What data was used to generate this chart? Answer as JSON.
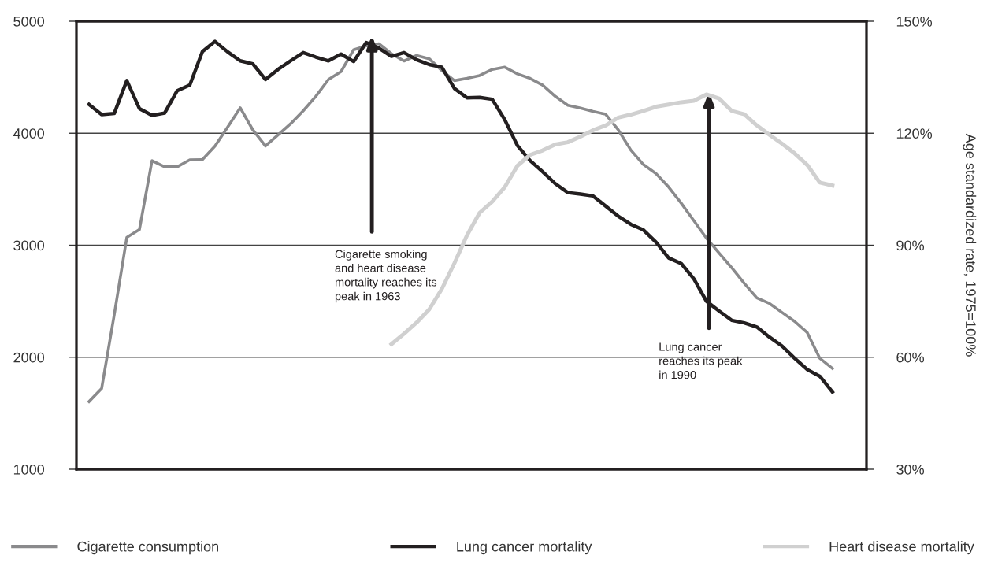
{
  "chart_data": {
    "type": "line",
    "categories": [
      null,
      null,
      null,
      null,
      null,
      null,
      null,
      null,
      null,
      null,
      null,
      null,
      null,
      null,
      null,
      null,
      null,
      null,
      null,
      null,
      null,
      null,
      null,
      null,
      null,
      null,
      null,
      null,
      null,
      null,
      null,
      null,
      null,
      null,
      null,
      null,
      null,
      null,
      null,
      null,
      null,
      null,
      null,
      null,
      null,
      null,
      null,
      null,
      null,
      null,
      null,
      null,
      null,
      null,
      null,
      null,
      null,
      null,
      null,
      null
    ],
    "series": [
      {
        "name": "Cigarette consumption",
        "color": "#8a8a8c",
        "values": [
          1604,
          1720,
          2378,
          3070,
          3140,
          3755,
          3700,
          3700,
          3763,
          3765,
          3885,
          4055,
          4227,
          4030,
          3886,
          3985,
          4085,
          4200,
          4330,
          4480,
          4550,
          4745,
          4780,
          4800,
          4710,
          4645,
          4695,
          4665,
          4560,
          4470,
          4490,
          4515,
          4570,
          4590,
          4530,
          4490,
          4430,
          4330,
          4250,
          4225,
          4195,
          4170,
          4030,
          3850,
          3720,
          3640,
          3520,
          3375,
          3220,
          3063,
          2930,
          2800,
          2660,
          2530,
          2480,
          2400,
          2320,
          2220,
          1990,
          1900
        ]
      },
      {
        "name": "Lung cancer mortality",
        "color": "#231f20",
        "axis": "y2",
        "values": [
          127.7,
          125.0,
          125.3,
          134.1,
          126.6,
          124.8,
          125.4,
          131.4,
          132.9,
          141.9,
          144.6,
          141.8,
          139.4,
          138.6,
          134.4,
          137.1,
          139.4,
          141.6,
          140.4,
          139.4,
          141.2,
          139.2,
          144.3,
          142.8,
          140.6,
          141.6,
          139.7,
          138.4,
          137.7,
          132.0,
          129.5,
          129.6,
          129.1,
          123.6,
          116.7,
          112.7,
          109.7,
          106.5,
          104.1,
          103.7,
          103.2,
          100.5,
          97.8,
          95.6,
          94.1,
          90.8,
          86.6,
          85.1,
          81.0,
          75.0,
          72.4,
          69.9,
          69.2,
          68.1,
          65.4,
          63.0,
          59.7,
          56.7,
          54.9,
          50.7
        ]
      },
      {
        "name": "Heart disease mortality",
        "color": "#d0d0d0",
        "axis": "y2",
        "values": [
          null,
          null,
          null,
          null,
          null,
          null,
          null,
          null,
          null,
          null,
          null,
          null,
          null,
          null,
          null,
          null,
          null,
          null,
          null,
          null,
          null,
          null,
          null,
          null,
          63.5,
          66.3,
          69.3,
          72.8,
          78.3,
          85.2,
          92.7,
          98.7,
          101.7,
          105.6,
          111.3,
          114.2,
          115.4,
          117.0,
          117.6,
          119.1,
          120.8,
          122.1,
          124.2,
          125.0,
          126.0,
          127.1,
          127.7,
          128.3,
          128.7,
          130.4,
          129.3,
          126.0,
          125.1,
          122.1,
          119.6,
          117.2,
          114.6,
          111.5,
          106.8,
          106.0
        ]
      }
    ],
    "ylim": [
      1000,
      5000
    ],
    "yticks": [
      1000,
      2000,
      3000,
      4000,
      5000
    ],
    "y2lim": [
      30,
      150
    ],
    "y2ticks": [
      {
        "value": 30,
        "label": "30%"
      },
      {
        "value": 60,
        "label": "60%"
      },
      {
        "value": 90,
        "label": "90%"
      },
      {
        "value": 120,
        "label": "120%"
      },
      {
        "value": 150,
        "label": "150%"
      }
    ],
    "y2label": "Age standardized rate, 1975=100%",
    "annotations": [
      "Cigarette smoking\nand heart disease\nmortality reaches its\npeak in 1963",
      "Lung cancer\nreaches its peak\nin 1990"
    ],
    "grid": "y",
    "legend": "bottom",
    "line_style": "solid",
    "marker": "none"
  }
}
